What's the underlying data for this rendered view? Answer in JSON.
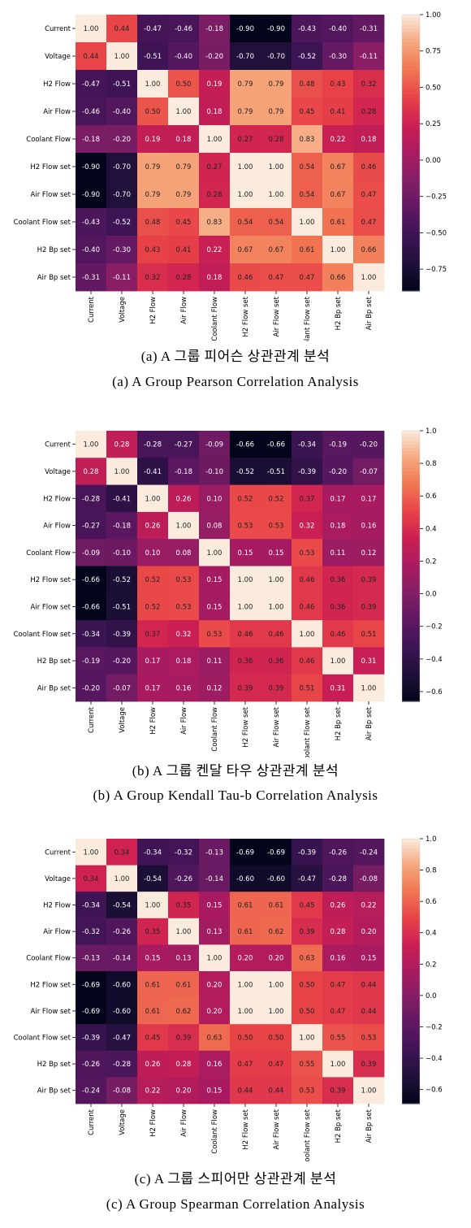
{
  "chart_data": [
    {
      "type": "heatmap",
      "labels": [
        "Current",
        "Voltage",
        "H2 Flow",
        "Air Flow",
        "Coolant Flow",
        "H2 Flow set",
        "Air Flow set",
        "Coolant Flow set",
        "H2 Bp set",
        "Air Bp set"
      ],
      "matrix": [
        [
          1.0,
          0.44,
          -0.47,
          -0.46,
          -0.18,
          -0.9,
          -0.9,
          -0.43,
          -0.4,
          -0.31
        ],
        [
          0.44,
          1.0,
          -0.51,
          -0.4,
          -0.2,
          -0.7,
          -0.7,
          -0.52,
          -0.3,
          -0.11
        ],
        [
          -0.47,
          -0.51,
          1.0,
          0.5,
          0.19,
          0.79,
          0.79,
          0.48,
          0.43,
          0.32
        ],
        [
          -0.46,
          -0.4,
          0.5,
          1.0,
          0.18,
          0.79,
          0.79,
          0.45,
          0.41,
          0.28
        ],
        [
          -0.18,
          -0.2,
          0.19,
          0.18,
          1.0,
          0.27,
          0.28,
          0.83,
          0.22,
          0.18
        ],
        [
          -0.9,
          -0.7,
          0.79,
          0.79,
          0.27,
          1.0,
          1.0,
          0.54,
          0.67,
          0.46
        ],
        [
          -0.9,
          -0.7,
          0.79,
          0.79,
          0.28,
          1.0,
          1.0,
          0.54,
          0.67,
          0.47
        ],
        [
          -0.43,
          -0.52,
          0.48,
          0.45,
          0.83,
          0.54,
          0.54,
          1.0,
          0.61,
          0.47
        ],
        [
          -0.4,
          -0.3,
          0.43,
          0.41,
          0.22,
          0.67,
          0.67,
          0.61,
          1.0,
          0.66
        ],
        [
          -0.31,
          -0.11,
          0.32,
          0.28,
          0.18,
          0.46,
          0.47,
          0.47,
          0.66,
          1.0
        ]
      ],
      "colorbar": {
        "min": -0.9,
        "max": 1.0,
        "ticks": [
          1.0,
          0.75,
          0.5,
          0.25,
          0.0,
          -0.25,
          -0.5,
          -0.75
        ],
        "tick_labels": [
          "1.00",
          "0.75",
          "0.50",
          "0.25",
          "0.00",
          "−0.25",
          "−0.50",
          "−0.75"
        ]
      },
      "caption_ko": "(a) A 그룹 피어슨 상관관계 분석",
      "caption_en": "(a) A Group Pearson Correlation Analysis"
    },
    {
      "type": "heatmap",
      "labels": [
        "Current",
        "Voltage",
        "H2 Flow",
        "Air Flow",
        "Coolant Flow",
        "H2 Flow set",
        "Air Flow set",
        "Coolant Flow set",
        "H2 Bp set",
        "Air Bp set"
      ],
      "matrix": [
        [
          1.0,
          0.28,
          -0.28,
          -0.27,
          -0.09,
          -0.66,
          -0.66,
          -0.34,
          -0.19,
          -0.2
        ],
        [
          0.28,
          1.0,
          -0.41,
          -0.18,
          -0.1,
          -0.52,
          -0.51,
          -0.39,
          -0.2,
          -0.07
        ],
        [
          -0.28,
          -0.41,
          1.0,
          0.26,
          0.1,
          0.52,
          0.52,
          0.37,
          0.17,
          0.17
        ],
        [
          -0.27,
          -0.18,
          0.26,
          1.0,
          0.08,
          0.53,
          0.53,
          0.32,
          0.18,
          0.16
        ],
        [
          -0.09,
          -0.1,
          0.1,
          0.08,
          1.0,
          0.15,
          0.15,
          0.53,
          0.11,
          0.12
        ],
        [
          -0.66,
          -0.52,
          0.52,
          0.53,
          0.15,
          1.0,
          1.0,
          0.46,
          0.36,
          0.39
        ],
        [
          -0.66,
          -0.51,
          0.52,
          0.53,
          0.15,
          1.0,
          1.0,
          0.46,
          0.36,
          0.39
        ],
        [
          -0.34,
          -0.39,
          0.37,
          0.32,
          0.53,
          0.46,
          0.46,
          1.0,
          0.46,
          0.51
        ],
        [
          -0.19,
          -0.2,
          0.17,
          0.18,
          0.11,
          0.36,
          0.36,
          0.46,
          1.0,
          0.31
        ],
        [
          -0.2,
          -0.07,
          0.17,
          0.16,
          0.12,
          0.39,
          0.39,
          0.51,
          0.31,
          1.0
        ]
      ],
      "colorbar": {
        "min": -0.66,
        "max": 1.0,
        "ticks": [
          1.0,
          0.8,
          0.6,
          0.4,
          0.2,
          0.0,
          -0.2,
          -0.4,
          -0.6
        ],
        "tick_labels": [
          "1.0",
          "0.8",
          "0.6",
          "0.4",
          "0.2",
          "0.0",
          "−0.2",
          "−0.4",
          "−0.6"
        ]
      },
      "caption_ko": "(b) A 그룹 켄달 타우 상관관계 분석",
      "caption_en": "(b) A Group Kendall Tau-b Correlation Analysis"
    },
    {
      "type": "heatmap",
      "labels": [
        "Current",
        "Voltage",
        "H2 Flow",
        "Air Flow",
        "Coolant Flow",
        "H2 Flow set",
        "Air Flow set",
        "Coolant Flow set",
        "H2 Bp set",
        "Air Bp set"
      ],
      "matrix": [
        [
          1.0,
          0.34,
          -0.34,
          -0.32,
          -0.13,
          -0.69,
          -0.69,
          -0.39,
          -0.26,
          -0.24
        ],
        [
          0.34,
          1.0,
          -0.54,
          -0.26,
          -0.14,
          -0.6,
          -0.6,
          -0.47,
          -0.28,
          -0.08
        ],
        [
          -0.34,
          -0.54,
          1.0,
          0.35,
          0.15,
          0.61,
          0.61,
          0.45,
          0.26,
          0.22
        ],
        [
          -0.32,
          -0.26,
          0.35,
          1.0,
          0.13,
          0.61,
          0.62,
          0.39,
          0.28,
          0.2
        ],
        [
          -0.13,
          -0.14,
          0.15,
          0.13,
          1.0,
          0.2,
          0.2,
          0.63,
          0.16,
          0.15
        ],
        [
          -0.69,
          -0.6,
          0.61,
          0.61,
          0.2,
          1.0,
          1.0,
          0.5,
          0.47,
          0.44
        ],
        [
          -0.69,
          -0.6,
          0.61,
          0.62,
          0.2,
          1.0,
          1.0,
          0.5,
          0.47,
          0.44
        ],
        [
          -0.39,
          -0.47,
          0.45,
          0.39,
          0.63,
          0.5,
          0.5,
          1.0,
          0.55,
          0.53
        ],
        [
          -0.26,
          -0.28,
          0.26,
          0.28,
          0.16,
          0.47,
          0.47,
          0.55,
          1.0,
          0.39
        ],
        [
          -0.24,
          -0.08,
          0.22,
          0.2,
          0.15,
          0.44,
          0.44,
          0.53,
          0.39,
          1.0
        ]
      ],
      "colorbar": {
        "min": -0.69,
        "max": 1.0,
        "ticks": [
          1.0,
          0.8,
          0.6,
          0.4,
          0.2,
          0.0,
          -0.2,
          -0.4,
          -0.6
        ],
        "tick_labels": [
          "1.0",
          "0.8",
          "0.6",
          "0.4",
          "0.2",
          "0.0",
          "−0.2",
          "−0.4",
          "−0.6"
        ]
      },
      "caption_ko": "(c) A 그룹 스피어만 상관관계 분석",
      "caption_en": "(c) A Group Spearman Correlation Analysis"
    }
  ]
}
